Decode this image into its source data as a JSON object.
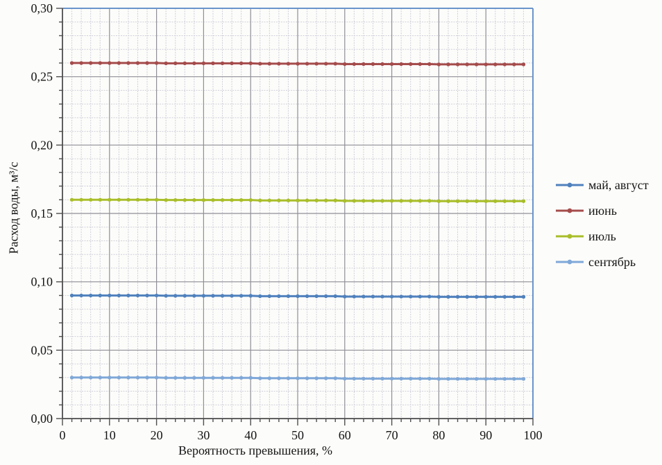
{
  "figure": {
    "background": "#FCFCFA"
  },
  "colors": {
    "grid_minor": "#CFCFDA",
    "grid_major": "#8E8E96",
    "axis": "#4D4D4D",
    "plot_border": "#6A93CB",
    "text": "#141414"
  },
  "chart_data": {
    "type": "line",
    "title": "",
    "xlabel": "Вероятность превышения, %",
    "ylabel": "Расход воды, м³/с",
    "xlim": [
      0,
      100
    ],
    "ylim": [
      0,
      0.3
    ],
    "grid": "major+minor",
    "legend_position": "right",
    "x_major_step": 10,
    "x_minor_step": 2,
    "y_major_step": 0.05,
    "y_minor_step": 0.01,
    "x_tick_values": [
      0,
      10,
      20,
      30,
      40,
      50,
      60,
      70,
      80,
      90,
      100
    ],
    "x_tick_labels": [
      "0",
      "10",
      "20",
      "30",
      "40",
      "50",
      "60",
      "70",
      "80",
      "90",
      "100"
    ],
    "y_tick_values": [
      0,
      0.05,
      0.1,
      0.15,
      0.2,
      0.25,
      0.3
    ],
    "y_tick_labels": [
      "0,00",
      "0,05",
      "0,10",
      "0,15",
      "0,20",
      "0,25",
      "0,30"
    ],
    "x": [
      2,
      4,
      6,
      8,
      10,
      12,
      14,
      16,
      18,
      20,
      22,
      24,
      26,
      28,
      30,
      32,
      34,
      36,
      38,
      40,
      42,
      44,
      46,
      48,
      50,
      52,
      54,
      56,
      58,
      60,
      62,
      64,
      66,
      68,
      70,
      72,
      74,
      76,
      78,
      80,
      82,
      84,
      86,
      88,
      90,
      92,
      94,
      96,
      98
    ],
    "series": [
      {
        "name": "май, август",
        "color": "#4F81BD",
        "values": [
          0.09,
          0.09,
          0.09,
          0.09,
          0.09,
          0.09,
          0.09,
          0.09,
          0.09,
          0.09,
          0.0898,
          0.0898,
          0.0898,
          0.0898,
          0.0898,
          0.0898,
          0.0898,
          0.0898,
          0.0898,
          0.0898,
          0.0895,
          0.0895,
          0.0895,
          0.0895,
          0.0895,
          0.0895,
          0.0895,
          0.0895,
          0.0895,
          0.0892,
          0.0892,
          0.0892,
          0.0892,
          0.0892,
          0.0892,
          0.0892,
          0.0892,
          0.0892,
          0.0892,
          0.089,
          0.089,
          0.089,
          0.089,
          0.089,
          0.089,
          0.089,
          0.089,
          0.089,
          0.089
        ]
      },
      {
        "name": "июнь",
        "color": "#A54B4B",
        "values": [
          0.26,
          0.26,
          0.26,
          0.26,
          0.26,
          0.26,
          0.26,
          0.26,
          0.26,
          0.26,
          0.2598,
          0.2598,
          0.2598,
          0.2598,
          0.2598,
          0.2598,
          0.2598,
          0.2598,
          0.2598,
          0.2598,
          0.2595,
          0.2595,
          0.2595,
          0.2595,
          0.2595,
          0.2595,
          0.2595,
          0.2595,
          0.2595,
          0.2592,
          0.2592,
          0.2592,
          0.2592,
          0.2592,
          0.2592,
          0.2592,
          0.2592,
          0.2592,
          0.2592,
          0.259,
          0.259,
          0.259,
          0.259,
          0.259,
          0.259,
          0.259,
          0.259,
          0.259,
          0.259
        ]
      },
      {
        "name": "июль",
        "color": "#A9BE29",
        "values": [
          0.16,
          0.16,
          0.16,
          0.16,
          0.16,
          0.16,
          0.16,
          0.16,
          0.16,
          0.16,
          0.1598,
          0.1598,
          0.1598,
          0.1598,
          0.1598,
          0.1598,
          0.1598,
          0.1598,
          0.1598,
          0.1598,
          0.1595,
          0.1595,
          0.1595,
          0.1595,
          0.1595,
          0.1595,
          0.1595,
          0.1595,
          0.1595,
          0.1592,
          0.1592,
          0.1592,
          0.1592,
          0.1592,
          0.1592,
          0.1592,
          0.1592,
          0.1592,
          0.1592,
          0.159,
          0.159,
          0.159,
          0.159,
          0.159,
          0.159,
          0.159,
          0.159,
          0.159,
          0.159
        ]
      },
      {
        "name": "сентябрь",
        "color": "#7FA8D8",
        "values": [
          0.03,
          0.03,
          0.03,
          0.03,
          0.03,
          0.03,
          0.03,
          0.03,
          0.03,
          0.03,
          0.0298,
          0.0298,
          0.0298,
          0.0298,
          0.0298,
          0.0298,
          0.0298,
          0.0298,
          0.0298,
          0.0298,
          0.0295,
          0.0295,
          0.0295,
          0.0295,
          0.0295,
          0.0295,
          0.0295,
          0.0295,
          0.0295,
          0.0292,
          0.0292,
          0.0292,
          0.0292,
          0.0292,
          0.0292,
          0.0292,
          0.0292,
          0.0292,
          0.0292,
          0.029,
          0.029,
          0.029,
          0.029,
          0.029,
          0.029,
          0.029,
          0.029,
          0.029,
          0.029
        ]
      }
    ]
  }
}
